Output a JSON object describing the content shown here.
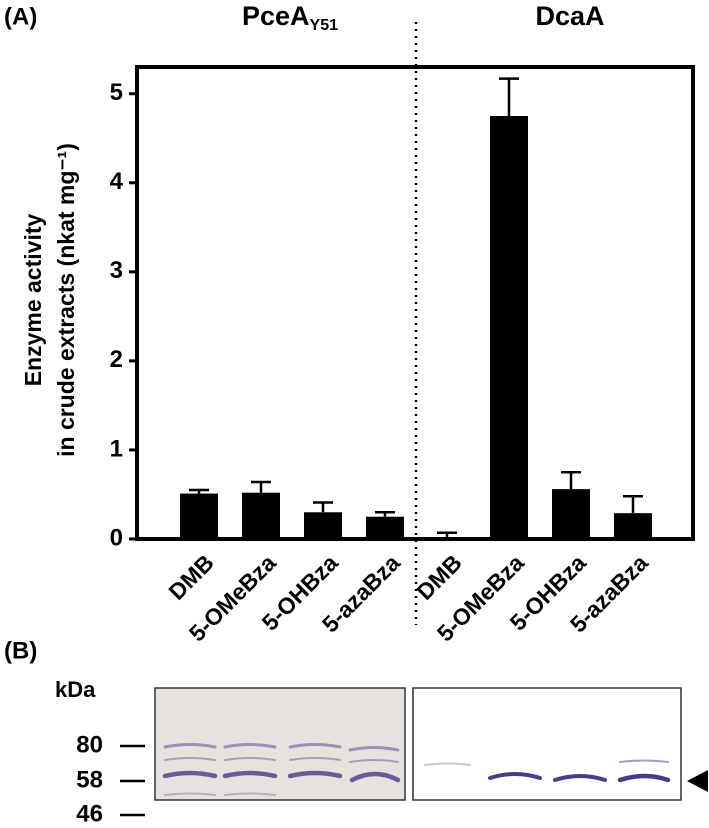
{
  "chart_data": {
    "type": "bar",
    "panel_label": "(A)",
    "groups": [
      {
        "name": "PceA",
        "subscript": "Y51"
      },
      {
        "name": "DcaA"
      }
    ],
    "ylabel": [
      "Enzyme  activity",
      "in crude extracts (nkat mg⁻¹)"
    ],
    "categories": [
      "DMB",
      "5-OMeBza",
      "5-OHBza",
      "5-azaBza",
      "DMB",
      "5-OMeBza",
      "5-OHBza",
      "5-azaBza"
    ],
    "values": [
      0.51,
      0.52,
      0.3,
      0.25,
      0,
      4.75,
      0.56,
      0.29
    ],
    "errors": [
      0.04,
      0.12,
      0.11,
      0.05,
      0.07,
      0.42,
      0.19,
      0.19
    ],
    "color": "#000000",
    "ylim": [
      0,
      5.3
    ],
    "yticks": [
      0,
      1,
      2,
      3,
      4,
      5
    ]
  },
  "gel": {
    "panel_label": "(B)",
    "unit": "kDa",
    "markers": [
      80,
      58,
      46
    ]
  }
}
